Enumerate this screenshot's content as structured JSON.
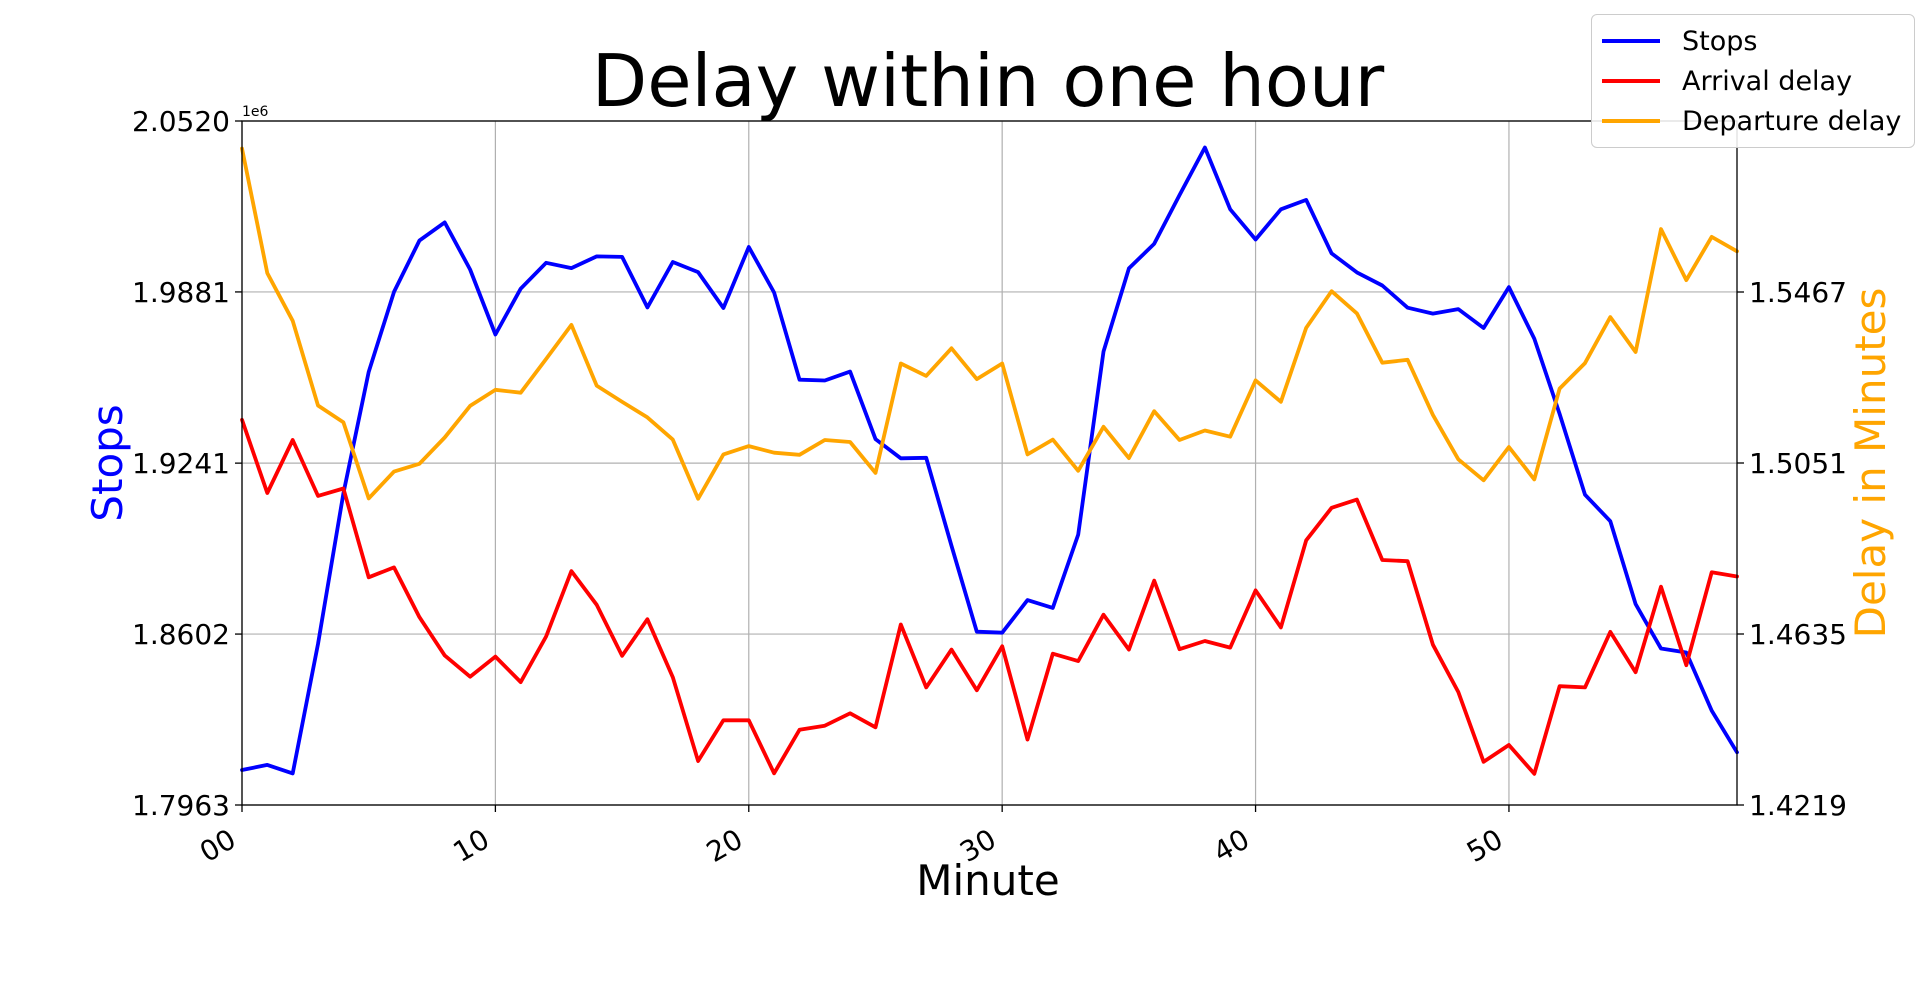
{
  "chart_data": {
    "type": "line",
    "title": "Delay within one hour",
    "xlabel": "Minute",
    "ylabel_left": "Stops",
    "ylabel_right": "Delay in Minutes",
    "left_axis_multiplier": "1e6",
    "right_axis_multiplier": "",
    "xlim": [
      0,
      59
    ],
    "ylim_left": [
      1.7963,
      2.052
    ],
    "ylim_right": [
      1.4219,
      1.5883
    ],
    "x_ticks": [
      0,
      10,
      20,
      30,
      40,
      50
    ],
    "x_tick_labels": [
      "00",
      "10",
      "20",
      "30",
      "40",
      "50"
    ],
    "y_left_ticks": [
      1.7963,
      1.8602,
      1.9241,
      1.9881,
      2.052
    ],
    "y_left_tick_labels": [
      "1.7963",
      "1.8602",
      "1.9241",
      "1.9881",
      "2.0520"
    ],
    "y_right_ticks": [
      1.4219,
      1.4635,
      1.5051,
      1.5467
    ],
    "y_right_tick_labels": [
      "1.4219",
      "1.4635",
      "1.5051",
      "1.5467"
    ],
    "grid": true,
    "legend_position": "top-right",
    "x": [
      0,
      1,
      2,
      3,
      4,
      5,
      6,
      7,
      8,
      9,
      10,
      11,
      12,
      13,
      14,
      15,
      16,
      17,
      18,
      19,
      20,
      21,
      22,
      23,
      24,
      25,
      26,
      27,
      28,
      29,
      30,
      31,
      32,
      33,
      34,
      35,
      36,
      37,
      38,
      39,
      40,
      41,
      42,
      43,
      44,
      45,
      46,
      47,
      48,
      49,
      50,
      51,
      52,
      53,
      54,
      55,
      56,
      57,
      58,
      59
    ],
    "series": [
      {
        "name": "Stops",
        "axis": "left",
        "color": "#0000ff",
        "values": [
          1.8094,
          1.8113,
          1.8081,
          1.8565,
          1.9128,
          1.9582,
          1.9881,
          2.0073,
          2.0141,
          1.9965,
          1.9722,
          1.9893,
          1.999,
          1.997,
          2.0014,
          2.0012,
          1.9823,
          1.9993,
          1.9955,
          1.9821,
          2.0049,
          1.9879,
          1.9553,
          1.955,
          1.9583,
          1.9331,
          1.9259,
          1.9261,
          1.8932,
          1.8611,
          1.8607,
          1.8729,
          1.87,
          1.8974,
          1.9658,
          1.9969,
          2.0061,
          2.0243,
          2.0421,
          2.019,
          2.0077,
          2.019,
          2.0225,
          2.0025,
          1.9954,
          1.9905,
          1.9822,
          1.98,
          1.9817,
          1.9746,
          1.9899,
          1.9706,
          1.9425,
          1.9123,
          1.9024,
          1.8714,
          1.8548,
          1.8533,
          1.8316,
          1.816
        ]
      },
      {
        "name": "Arrival delay",
        "axis": "right",
        "color": "#ff0000",
        "values": [
          1.5156,
          1.4978,
          1.5107,
          1.4971,
          1.4989,
          1.4773,
          1.4797,
          1.4676,
          1.4583,
          1.4531,
          1.458,
          1.4518,
          1.4629,
          1.4788,
          1.4706,
          1.4582,
          1.4671,
          1.453,
          1.4326,
          1.4425,
          1.4425,
          1.4296,
          1.4402,
          1.4412,
          1.4442,
          1.4408,
          1.4658,
          1.4505,
          1.4597,
          1.4498,
          1.4605,
          1.4378,
          1.4587,
          1.4569,
          1.4682,
          1.4597,
          1.4765,
          1.4598,
          1.4618,
          1.4602,
          1.4741,
          1.4651,
          1.4863,
          1.4942,
          1.4962,
          1.4815,
          1.4812,
          1.4609,
          1.4494,
          1.4324,
          1.4365,
          1.4295,
          1.4508,
          1.4505,
          1.464,
          1.4542,
          1.475,
          1.4559,
          1.4785,
          1.4775
        ]
      },
      {
        "name": "Departure delay",
        "axis": "right",
        "color": "#ffa500",
        "values": [
          1.5816,
          1.5513,
          1.5397,
          1.5191,
          1.515,
          1.4965,
          1.503,
          1.5049,
          1.5113,
          1.519,
          1.5229,
          1.5222,
          1.5304,
          1.5387,
          1.5239,
          1.52,
          1.5162,
          1.5108,
          1.4964,
          1.5072,
          1.5092,
          1.5076,
          1.5071,
          1.5107,
          1.5102,
          1.5027,
          1.5293,
          1.5263,
          1.533,
          1.5255,
          1.5293,
          1.5072,
          1.5108,
          1.5032,
          1.5139,
          1.5063,
          1.5177,
          1.5107,
          1.513,
          1.5115,
          1.5252,
          1.52,
          1.538,
          1.5469,
          1.5415,
          1.5295,
          1.5302,
          1.5168,
          1.506,
          1.5009,
          1.509,
          1.5011,
          1.5232,
          1.5294,
          1.5406,
          1.5321,
          1.562,
          1.5496,
          1.5601,
          1.5566
        ]
      }
    ]
  }
}
